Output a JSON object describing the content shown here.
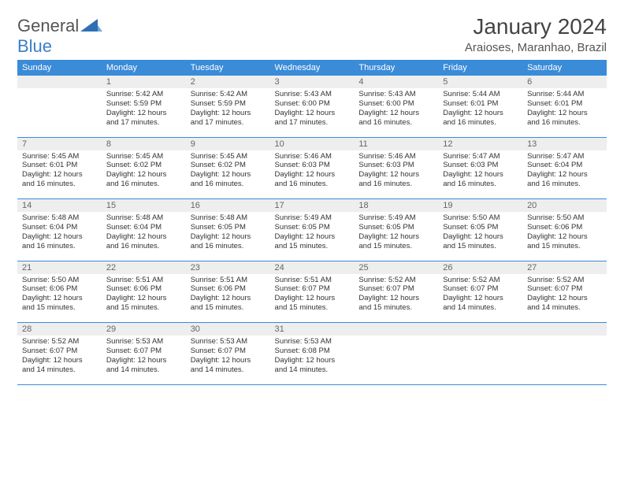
{
  "brand": {
    "part1": "General",
    "part2": "Blue"
  },
  "title": "January 2024",
  "location": "Araioses, Maranhao, Brazil",
  "colors": {
    "header_bg": "#3a8bd8",
    "header_text": "#ffffff",
    "daynum_bg": "#eeeeee",
    "daynum_text": "#666666",
    "rule": "#3a8bd8",
    "body_text": "#333333",
    "logo_accent": "#3a7fc4"
  },
  "daysOfWeek": [
    "Sunday",
    "Monday",
    "Tuesday",
    "Wednesday",
    "Thursday",
    "Friday",
    "Saturday"
  ],
  "weeks": [
    {
      "nums": [
        "",
        "1",
        "2",
        "3",
        "4",
        "5",
        "6"
      ],
      "cells": [
        null,
        {
          "sunrise": "5:42 AM",
          "sunset": "5:59 PM",
          "daylight": "12 hours and 17 minutes."
        },
        {
          "sunrise": "5:42 AM",
          "sunset": "5:59 PM",
          "daylight": "12 hours and 17 minutes."
        },
        {
          "sunrise": "5:43 AM",
          "sunset": "6:00 PM",
          "daylight": "12 hours and 17 minutes."
        },
        {
          "sunrise": "5:43 AM",
          "sunset": "6:00 PM",
          "daylight": "12 hours and 16 minutes."
        },
        {
          "sunrise": "5:44 AM",
          "sunset": "6:01 PM",
          "daylight": "12 hours and 16 minutes."
        },
        {
          "sunrise": "5:44 AM",
          "sunset": "6:01 PM",
          "daylight": "12 hours and 16 minutes."
        }
      ]
    },
    {
      "nums": [
        "7",
        "8",
        "9",
        "10",
        "11",
        "12",
        "13"
      ],
      "cells": [
        {
          "sunrise": "5:45 AM",
          "sunset": "6:01 PM",
          "daylight": "12 hours and 16 minutes."
        },
        {
          "sunrise": "5:45 AM",
          "sunset": "6:02 PM",
          "daylight": "12 hours and 16 minutes."
        },
        {
          "sunrise": "5:45 AM",
          "sunset": "6:02 PM",
          "daylight": "12 hours and 16 minutes."
        },
        {
          "sunrise": "5:46 AM",
          "sunset": "6:03 PM",
          "daylight": "12 hours and 16 minutes."
        },
        {
          "sunrise": "5:46 AM",
          "sunset": "6:03 PM",
          "daylight": "12 hours and 16 minutes."
        },
        {
          "sunrise": "5:47 AM",
          "sunset": "6:03 PM",
          "daylight": "12 hours and 16 minutes."
        },
        {
          "sunrise": "5:47 AM",
          "sunset": "6:04 PM",
          "daylight": "12 hours and 16 minutes."
        }
      ]
    },
    {
      "nums": [
        "14",
        "15",
        "16",
        "17",
        "18",
        "19",
        "20"
      ],
      "cells": [
        {
          "sunrise": "5:48 AM",
          "sunset": "6:04 PM",
          "daylight": "12 hours and 16 minutes."
        },
        {
          "sunrise": "5:48 AM",
          "sunset": "6:04 PM",
          "daylight": "12 hours and 16 minutes."
        },
        {
          "sunrise": "5:48 AM",
          "sunset": "6:05 PM",
          "daylight": "12 hours and 16 minutes."
        },
        {
          "sunrise": "5:49 AM",
          "sunset": "6:05 PM",
          "daylight": "12 hours and 15 minutes."
        },
        {
          "sunrise": "5:49 AM",
          "sunset": "6:05 PM",
          "daylight": "12 hours and 15 minutes."
        },
        {
          "sunrise": "5:50 AM",
          "sunset": "6:05 PM",
          "daylight": "12 hours and 15 minutes."
        },
        {
          "sunrise": "5:50 AM",
          "sunset": "6:06 PM",
          "daylight": "12 hours and 15 minutes."
        }
      ]
    },
    {
      "nums": [
        "21",
        "22",
        "23",
        "24",
        "25",
        "26",
        "27"
      ],
      "cells": [
        {
          "sunrise": "5:50 AM",
          "sunset": "6:06 PM",
          "daylight": "12 hours and 15 minutes."
        },
        {
          "sunrise": "5:51 AM",
          "sunset": "6:06 PM",
          "daylight": "12 hours and 15 minutes."
        },
        {
          "sunrise": "5:51 AM",
          "sunset": "6:06 PM",
          "daylight": "12 hours and 15 minutes."
        },
        {
          "sunrise": "5:51 AM",
          "sunset": "6:07 PM",
          "daylight": "12 hours and 15 minutes."
        },
        {
          "sunrise": "5:52 AM",
          "sunset": "6:07 PM",
          "daylight": "12 hours and 15 minutes."
        },
        {
          "sunrise": "5:52 AM",
          "sunset": "6:07 PM",
          "daylight": "12 hours and 14 minutes."
        },
        {
          "sunrise": "5:52 AM",
          "sunset": "6:07 PM",
          "daylight": "12 hours and 14 minutes."
        }
      ]
    },
    {
      "nums": [
        "28",
        "29",
        "30",
        "31",
        "",
        "",
        ""
      ],
      "cells": [
        {
          "sunrise": "5:52 AM",
          "sunset": "6:07 PM",
          "daylight": "12 hours and 14 minutes."
        },
        {
          "sunrise": "5:53 AM",
          "sunset": "6:07 PM",
          "daylight": "12 hours and 14 minutes."
        },
        {
          "sunrise": "5:53 AM",
          "sunset": "6:07 PM",
          "daylight": "12 hours and 14 minutes."
        },
        {
          "sunrise": "5:53 AM",
          "sunset": "6:08 PM",
          "daylight": "12 hours and 14 minutes."
        },
        null,
        null,
        null
      ]
    }
  ],
  "labels": {
    "sunrise": "Sunrise:",
    "sunset": "Sunset:",
    "daylight": "Daylight:"
  }
}
